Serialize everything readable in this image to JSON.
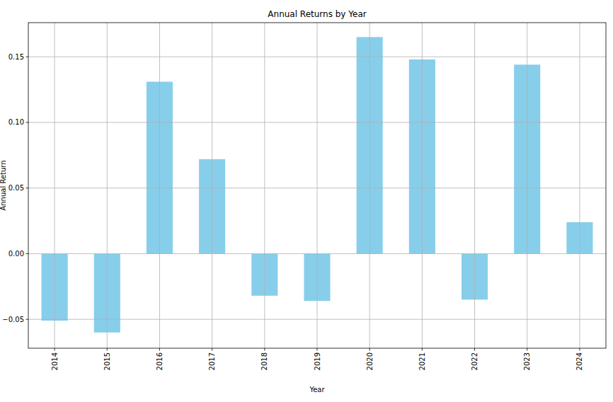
{
  "chart_data": {
    "type": "bar",
    "title": "Annual Returns by Year",
    "x_label": "Year",
    "y_label": "Annual Return",
    "categories": [
      "2014",
      "2015",
      "2016",
      "2017",
      "2018",
      "2019",
      "2020",
      "2021",
      "2022",
      "2023",
      "2024"
    ],
    "values": [
      -0.051,
      -0.06,
      0.131,
      0.072,
      -0.032,
      -0.036,
      0.165,
      0.148,
      -0.035,
      0.144,
      0.024
    ],
    "color": "#87ceeb",
    "ylim": [
      -0.072,
      0.176
    ],
    "yticks": [
      {
        "value": -0.05,
        "label": "−0.05"
      },
      {
        "value": 0,
        "label": "0.00"
      },
      {
        "value": 0.05,
        "label": "0.05"
      },
      {
        "value": 0.1,
        "label": "0.10"
      },
      {
        "value": 0.15,
        "label": "0.15"
      }
    ],
    "grid": true
  }
}
